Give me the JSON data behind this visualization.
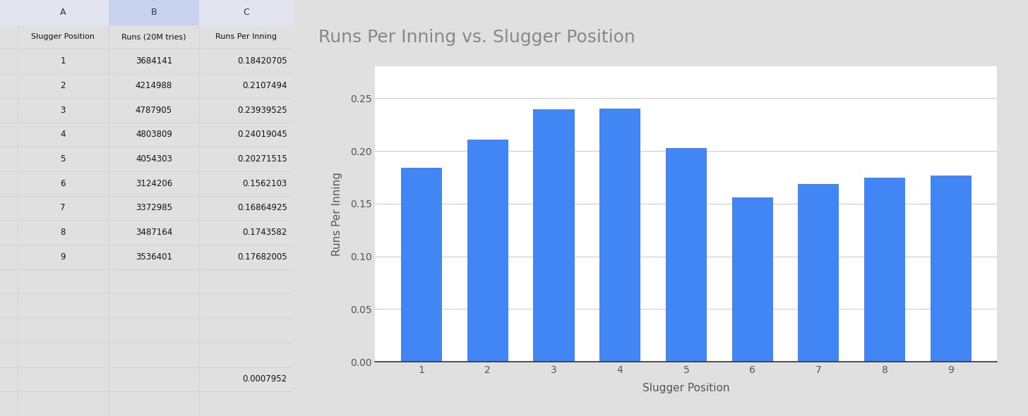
{
  "positions": [
    1,
    2,
    3,
    4,
    5,
    6,
    7,
    8,
    9
  ],
  "runs": [
    3684141,
    4214988,
    4787905,
    4803809,
    4054303,
    3124206,
    3372985,
    3487164,
    3536401
  ],
  "runs_per_inning": [
    0.18420705,
    0.2107494,
    0.23939525,
    0.24019045,
    0.20271515,
    0.1562103,
    0.16864925,
    0.1743582,
    0.17682005
  ],
  "rpi_display": [
    "0.18420705",
    "0.2107494",
    "0.23939525",
    "0.24019045",
    "0.20271515",
    "0.1562103",
    "0.16864925",
    "0.1743582",
    "0.17682005"
  ],
  "title": "Runs Per Inning vs. Slugger Position",
  "xlabel": "Slugger Position",
  "ylabel": "Runs Per Inning",
  "bar_color": "#4285F4",
  "title_color": "#888888",
  "label_color": "#555555",
  "ylim": [
    0,
    0.28
  ],
  "yticks": [
    0.0,
    0.05,
    0.1,
    0.15,
    0.2,
    0.25
  ],
  "grid_color": "#cccccc",
  "col_a_header": "Slugger Position",
  "col_b_header": "Runs (20M tries)",
  "col_c_header": "Runs Per Inning",
  "extra_value": "0.0007952",
  "title_fontsize": 18,
  "axis_label_fontsize": 11,
  "tick_fontsize": 10
}
